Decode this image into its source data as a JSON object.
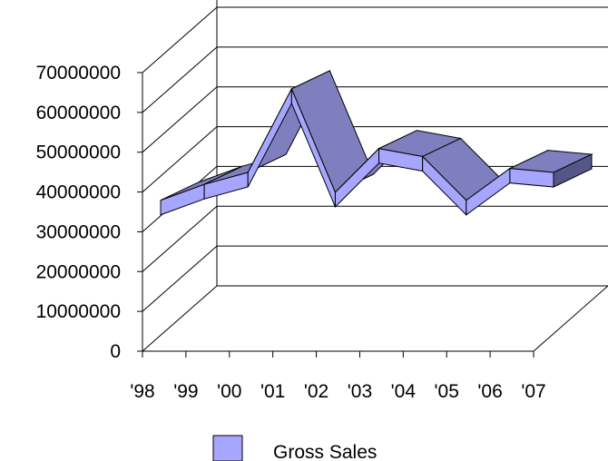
{
  "chart_data": {
    "type": "line",
    "style": "3d-ribbon",
    "categories": [
      "'98",
      "'99",
      "'00",
      "'01",
      "'02",
      "'03",
      "'04",
      "'05",
      "'06",
      "'07"
    ],
    "series": [
      {
        "name": "Gross Sales",
        "values": [
          37000000,
          41000000,
          44000000,
          65000000,
          39000000,
          50000000,
          48000000,
          37000000,
          45000000,
          44000000
        ]
      }
    ],
    "y_ticks": [
      "0",
      "10000000",
      "20000000",
      "30000000",
      "40000000",
      "50000000",
      "60000000",
      "70000000"
    ],
    "ylim": [
      0,
      70000000
    ],
    "grid": true,
    "legend_position": "bottom",
    "colors": {
      "front_face": "#a6a6ff",
      "top_face": "#7f7fbf",
      "end_face": "#55558a",
      "stroke": "#000000",
      "grid": "#000000"
    }
  }
}
